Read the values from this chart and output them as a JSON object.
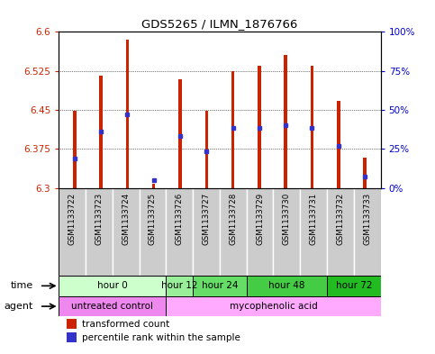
{
  "title": "GDS5265 / ILMN_1876766",
  "samples": [
    "GSM1133722",
    "GSM1133723",
    "GSM1133724",
    "GSM1133725",
    "GSM1133726",
    "GSM1133727",
    "GSM1133728",
    "GSM1133729",
    "GSM1133730",
    "GSM1133731",
    "GSM1133732",
    "GSM1133733"
  ],
  "bar_top": [
    6.448,
    6.515,
    6.585,
    6.308,
    6.508,
    6.449,
    6.524,
    6.535,
    6.555,
    6.535,
    6.468,
    6.358
  ],
  "bar_bottom": [
    6.3,
    6.3,
    6.3,
    6.3,
    6.3,
    6.3,
    6.3,
    6.3,
    6.3,
    6.3,
    6.3,
    6.3
  ],
  "blue_dot": [
    6.357,
    6.408,
    6.442,
    6.315,
    6.4,
    6.37,
    6.415,
    6.415,
    6.42,
    6.415,
    6.38,
    6.322
  ],
  "ylim_left": [
    6.3,
    6.6
  ],
  "ylim_right": [
    0,
    100
  ],
  "yticks_left": [
    6.3,
    6.375,
    6.45,
    6.525,
    6.6
  ],
  "yticks_right": [
    0,
    25,
    50,
    75,
    100
  ],
  "ytick_labels_right": [
    "0%",
    "25%",
    "50%",
    "75%",
    "100%"
  ],
  "bar_color": "#cc2200",
  "blue_color": "#3333cc",
  "bar_width": 0.12,
  "time_groups": [
    {
      "label": "hour 0",
      "start": 0,
      "end": 4,
      "color": "#ccffcc"
    },
    {
      "label": "hour 12",
      "start": 4,
      "end": 5,
      "color": "#99ee99"
    },
    {
      "label": "hour 24",
      "start": 5,
      "end": 7,
      "color": "#66dd66"
    },
    {
      "label": "hour 48",
      "start": 7,
      "end": 10,
      "color": "#44cc44"
    },
    {
      "label": "hour 72",
      "start": 10,
      "end": 12,
      "color": "#22bb22"
    }
  ],
  "agent_groups": [
    {
      "label": "untreated control",
      "start": 0,
      "end": 4,
      "color": "#ee88ee"
    },
    {
      "label": "mycophenolic acid",
      "start": 4,
      "end": 12,
      "color": "#ffaaff"
    }
  ],
  "sample_bg_color": "#cccccc",
  "legend_items": [
    {
      "label": "transformed count",
      "color": "#cc2200"
    },
    {
      "label": "percentile rank within the sample",
      "color": "#3333cc"
    }
  ]
}
